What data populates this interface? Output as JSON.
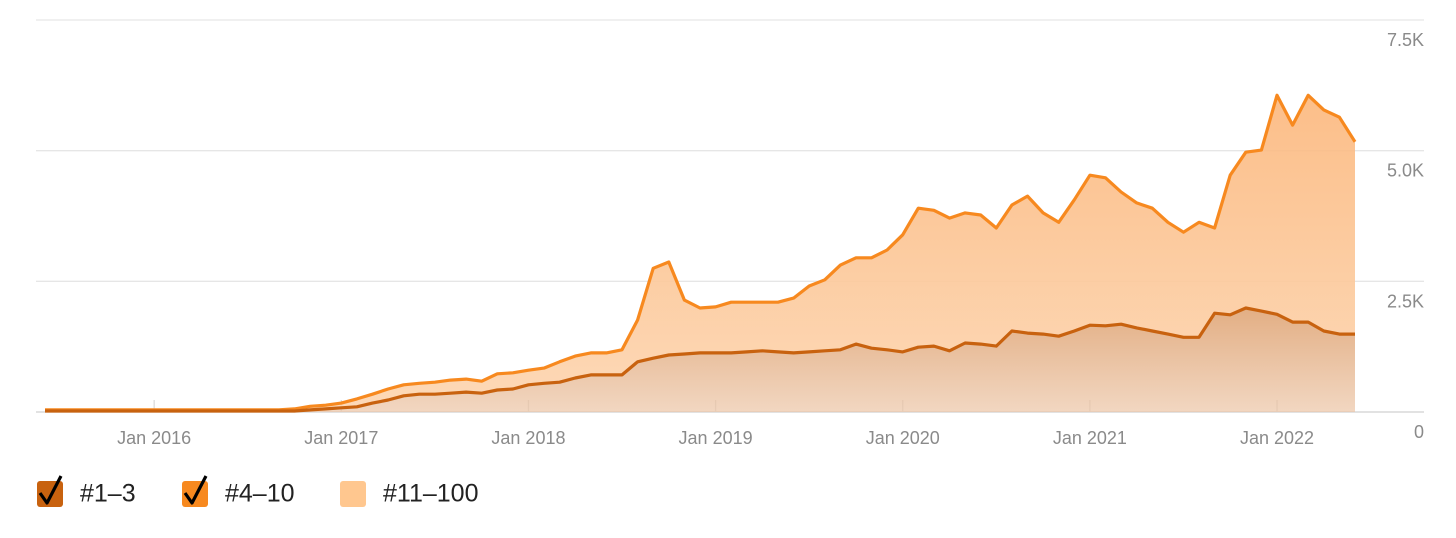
{
  "chart_data": {
    "type": "stacked-area",
    "x": [
      "2015-06",
      "2015-07",
      "2015-08",
      "2015-09",
      "2015-10",
      "2015-11",
      "2015-12",
      "2016-01",
      "2016-02",
      "2016-03",
      "2016-04",
      "2016-05",
      "2016-06",
      "2016-07",
      "2016-08",
      "2016-09",
      "2016-10",
      "2016-11",
      "2016-12",
      "2017-01",
      "2017-02",
      "2017-03",
      "2017-04",
      "2017-05",
      "2017-06",
      "2017-07",
      "2017-08",
      "2017-09",
      "2017-10",
      "2017-11",
      "2017-12",
      "2018-01",
      "2018-02",
      "2018-03",
      "2018-04",
      "2018-05",
      "2018-06",
      "2018-07",
      "2018-08",
      "2018-09",
      "2018-10",
      "2018-11",
      "2018-12",
      "2019-01",
      "2019-02",
      "2019-03",
      "2019-04",
      "2019-05",
      "2019-06",
      "2019-07",
      "2019-08",
      "2019-09",
      "2019-10",
      "2019-11",
      "2019-12",
      "2020-01",
      "2020-02",
      "2020-03",
      "2020-04",
      "2020-05",
      "2020-06",
      "2020-07",
      "2020-08",
      "2020-09",
      "2020-10",
      "2020-11",
      "2020-12",
      "2021-01",
      "2021-02",
      "2021-03",
      "2021-04",
      "2021-05",
      "2021-06",
      "2021-07",
      "2021-08",
      "2021-09",
      "2021-10",
      "2021-11",
      "2021-12",
      "2022-01",
      "2022-02",
      "2022-03",
      "2022-04",
      "2022-05",
      "2022-06"
    ],
    "series": [
      {
        "name": "#1–3",
        "color": "#c8620f",
        "checked": true,
        "values": [
          20,
          20,
          20,
          20,
          20,
          20,
          20,
          20,
          20,
          20,
          20,
          20,
          20,
          20,
          20,
          20,
          20,
          40,
          60,
          80,
          100,
          170,
          230,
          310,
          340,
          340,
          360,
          380,
          360,
          420,
          440,
          520,
          550,
          570,
          650,
          710,
          710,
          710,
          960,
          1030,
          1090,
          1110,
          1130,
          1130,
          1130,
          1150,
          1170,
          1150,
          1130,
          1150,
          1170,
          1190,
          1300,
          1220,
          1190,
          1150,
          1240,
          1260,
          1170,
          1320,
          1300,
          1260,
          1550,
          1510,
          1490,
          1450,
          1550,
          1660,
          1650,
          1680,
          1610,
          1550,
          1490,
          1430,
          1430,
          1890,
          1860,
          1990,
          1930,
          1870,
          1720,
          1720,
          1550,
          1490,
          1490
        ]
      },
      {
        "name": "#4–10",
        "color": "#f7891f",
        "checked": true,
        "values": [
          20,
          20,
          20,
          20,
          20,
          20,
          20,
          20,
          20,
          20,
          20,
          20,
          20,
          20,
          20,
          20,
          40,
          70,
          70,
          90,
          150,
          170,
          210,
          210,
          210,
          230,
          250,
          250,
          230,
          310,
          310,
          280,
          290,
          390,
          420,
          420,
          420,
          480,
          800,
          1720,
          1780,
          1030,
          860,
          880,
          970,
          950,
          930,
          950,
          1050,
          1260,
          1360,
          1620,
          1650,
          1730,
          1910,
          2240,
          2660,
          2600,
          2540,
          2490,
          2470,
          2260,
          2410,
          2620,
          2320,
          2180,
          2510,
          2870,
          2830,
          2530,
          2390,
          2350,
          2140,
          2010,
          2200,
          1630,
          2670,
          2980,
          3080,
          4190,
          3770,
          4340,
          4230,
          4150,
          3680
        ]
      },
      {
        "name": "#11–100",
        "color": "#ffc78f",
        "checked": false
      }
    ],
    "xlim": [
      "2015-06",
      "2022-06"
    ],
    "xticks": [
      {
        "value": "2016-01",
        "label": "Jan 2016"
      },
      {
        "value": "2017-01",
        "label": "Jan 2017"
      },
      {
        "value": "2018-01",
        "label": "Jan 2018"
      },
      {
        "value": "2019-01",
        "label": "Jan 2019"
      },
      {
        "value": "2020-01",
        "label": "Jan 2020"
      },
      {
        "value": "2021-01",
        "label": "Jan 2021"
      },
      {
        "value": "2022-01",
        "label": "Jan 2022"
      }
    ],
    "ylim": [
      0,
      7500
    ],
    "yticks": [
      0,
      {
        "value": 2500,
        "label": "2.5K"
      },
      {
        "value": 5000,
        "label": "5.0K"
      },
      {
        "value": 7500,
        "label": "7.5K"
      }
    ],
    "grid": true
  }
}
